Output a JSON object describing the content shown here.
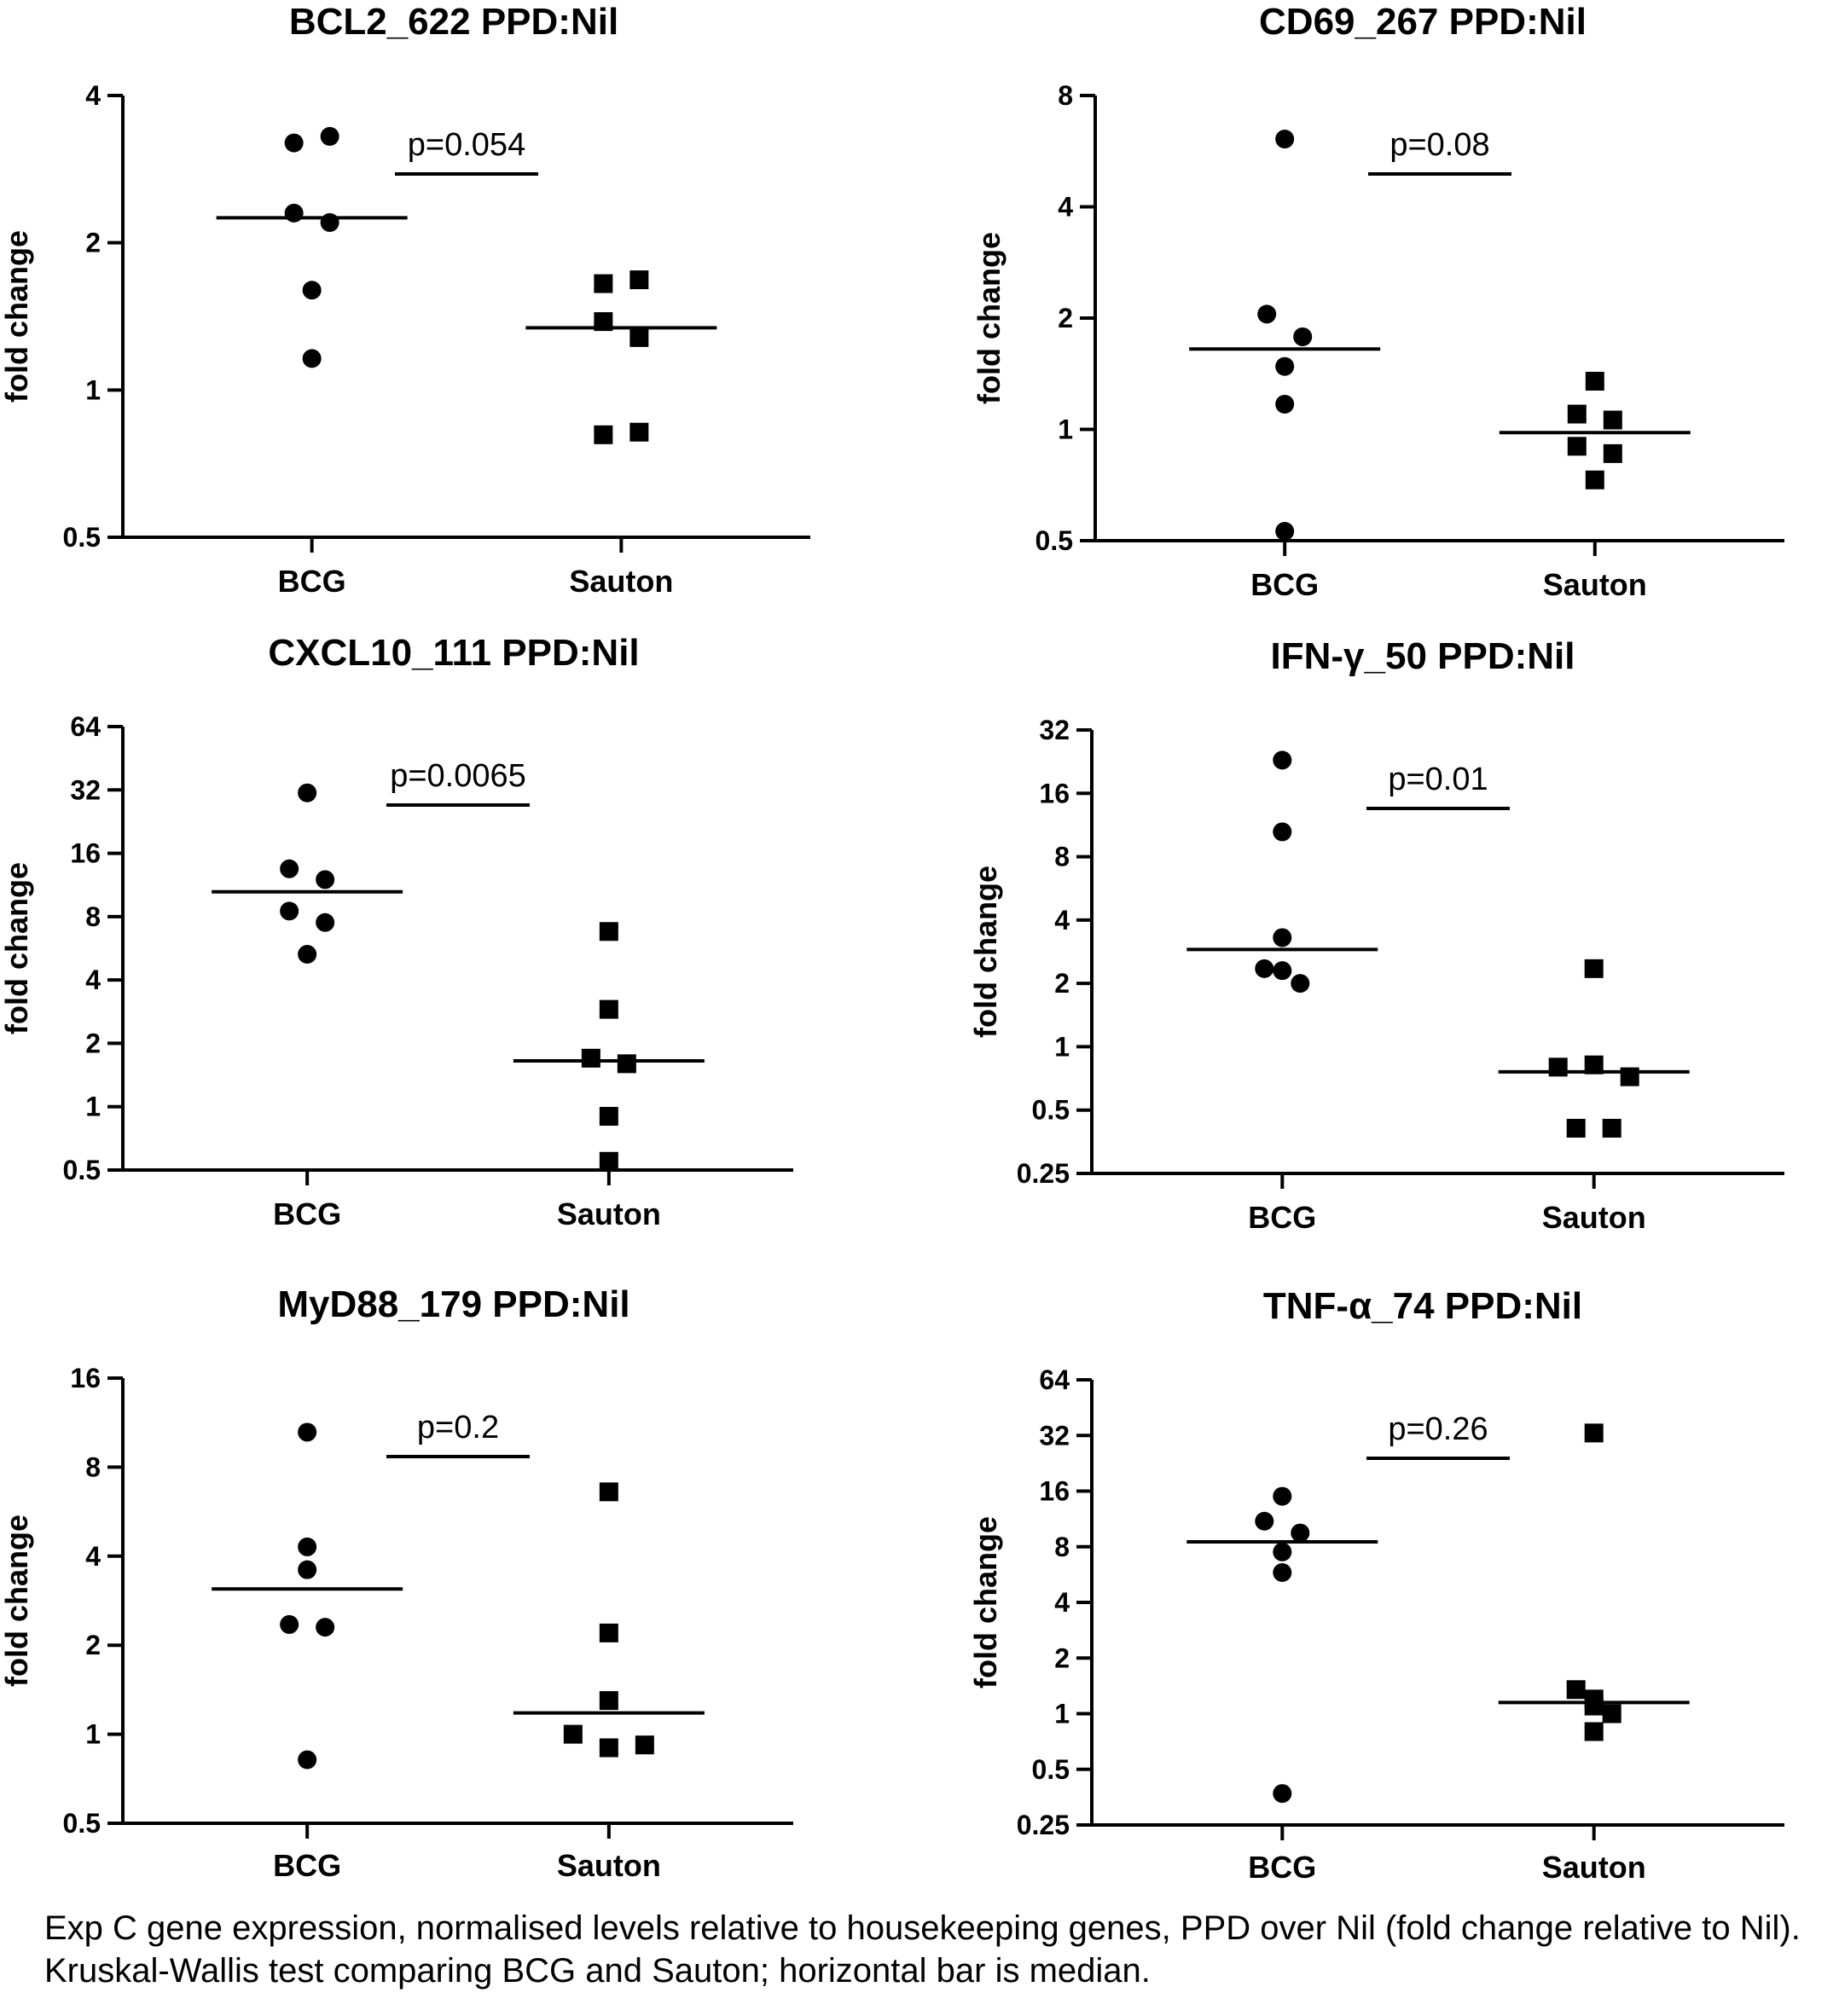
{
  "chart_data": [
    {
      "type": "scatter",
      "title": "BCL2_622 PPD:Nil",
      "ylabel": "fold change",
      "yscale": "log2",
      "ylim": [
        0.5,
        4
      ],
      "yticks": [
        "0.5",
        "1",
        "2",
        "4"
      ],
      "categories": [
        "BCG",
        "Sauton"
      ],
      "series": [
        {
          "name": "BCG",
          "marker": "circle",
          "values": [
            3.2,
            3.3,
            2.3,
            2.2,
            1.6,
            1.16
          ],
          "median": 2.25
        },
        {
          "name": "Sauton",
          "marker": "square",
          "values": [
            1.65,
            1.68,
            1.38,
            1.28,
            0.81,
            0.82
          ],
          "median": 1.34
        }
      ],
      "p_value": "p=0.054"
    },
    {
      "type": "scatter",
      "title": "CD69_267 PPD:Nil",
      "ylabel": "fold change",
      "yscale": "log2",
      "ylim": [
        0.5,
        8
      ],
      "yticks": [
        "0.5",
        "1",
        "2",
        "4",
        "8"
      ],
      "categories": [
        "BCG",
        "Sauton"
      ],
      "series": [
        {
          "name": "BCG",
          "marker": "circle",
          "values": [
            6.1,
            2.05,
            1.78,
            1.48,
            1.17,
            0.53
          ],
          "median": 1.65
        },
        {
          "name": "Sauton",
          "marker": "square",
          "values": [
            1.35,
            1.1,
            1.06,
            0.9,
            0.86,
            0.73
          ],
          "median": 0.98
        }
      ],
      "p_value": "p=0.08"
    },
    {
      "type": "scatter",
      "title": "CXCL10_111 PPD:Nil",
      "ylabel": "fold change",
      "yscale": "log2",
      "ylim": [
        0.5,
        64
      ],
      "yticks": [
        "0.5",
        "1",
        "2",
        "4",
        "8",
        "16",
        "32",
        "64"
      ],
      "categories": [
        "BCG",
        "Sauton"
      ],
      "series": [
        {
          "name": "BCG",
          "marker": "circle",
          "values": [
            31,
            13.5,
            12,
            8.5,
            7.5,
            5.3
          ],
          "median": 10.5
        },
        {
          "name": "Sauton",
          "marker": "square",
          "values": [
            6.8,
            2.9,
            1.7,
            1.6,
            0.9,
            0.55
          ],
          "median": 1.65
        }
      ],
      "p_value": "p=0.0065"
    },
    {
      "type": "scatter",
      "title": "IFN-γ_50 PPD:Nil",
      "ylabel": "fold change",
      "yscale": "log2",
      "ylim": [
        0.25,
        32
      ],
      "yticks": [
        "0.25",
        "0.5",
        "1",
        "2",
        "4",
        "8",
        "16",
        "32"
      ],
      "categories": [
        "BCG",
        "Sauton"
      ],
      "series": [
        {
          "name": "BCG",
          "marker": "circle",
          "values": [
            23,
            10.5,
            3.3,
            2.35,
            2.3,
            2.0
          ],
          "median": 2.9
        },
        {
          "name": "Sauton",
          "marker": "square",
          "values": [
            2.35,
            0.8,
            0.82,
            0.72,
            0.41,
            0.41
          ],
          "median": 0.76
        }
      ],
      "p_value": "p=0.01"
    },
    {
      "type": "scatter",
      "title": "MyD88_179 PPD:Nil",
      "ylabel": "fold change",
      "yscale": "log2",
      "ylim": [
        0.5,
        16
      ],
      "yticks": [
        "0.5",
        "1",
        "2",
        "4",
        "8",
        "16"
      ],
      "categories": [
        "BCG",
        "Sauton"
      ],
      "series": [
        {
          "name": "BCG",
          "marker": "circle",
          "values": [
            10.5,
            4.3,
            3.6,
            2.35,
            2.3,
            0.82
          ],
          "median": 3.1
        },
        {
          "name": "Sauton",
          "marker": "square",
          "values": [
            6.6,
            2.2,
            1.3,
            1.0,
            0.9,
            0.92
          ],
          "median": 1.18
        }
      ],
      "p_value": "p=0.2"
    },
    {
      "type": "scatter",
      "title": "TNF-α_74 PPD:Nil",
      "ylabel": "fold change",
      "yscale": "log2",
      "ylim": [
        0.25,
        64
      ],
      "yticks": [
        "0.25",
        "0.5",
        "1",
        "2",
        "4",
        "8",
        "16",
        "32",
        "64"
      ],
      "categories": [
        "BCG",
        "Sauton"
      ],
      "series": [
        {
          "name": "BCG",
          "marker": "circle",
          "values": [
            15,
            11,
            9.5,
            7.5,
            5.8,
            0.37
          ],
          "median": 8.5
        },
        {
          "name": "Sauton",
          "marker": "square",
          "values": [
            33,
            1.35,
            1.2,
            1.1,
            1.0,
            0.8
          ],
          "median": 1.15
        }
      ],
      "p_value": "p=0.26"
    }
  ],
  "caption": "Exp C gene expression, normalised levels relative to housekeeping genes, PPD over Nil (fold change relative to Nil). Kruskal-Wallis test comparing BCG and Sauton; horizontal bar is median."
}
